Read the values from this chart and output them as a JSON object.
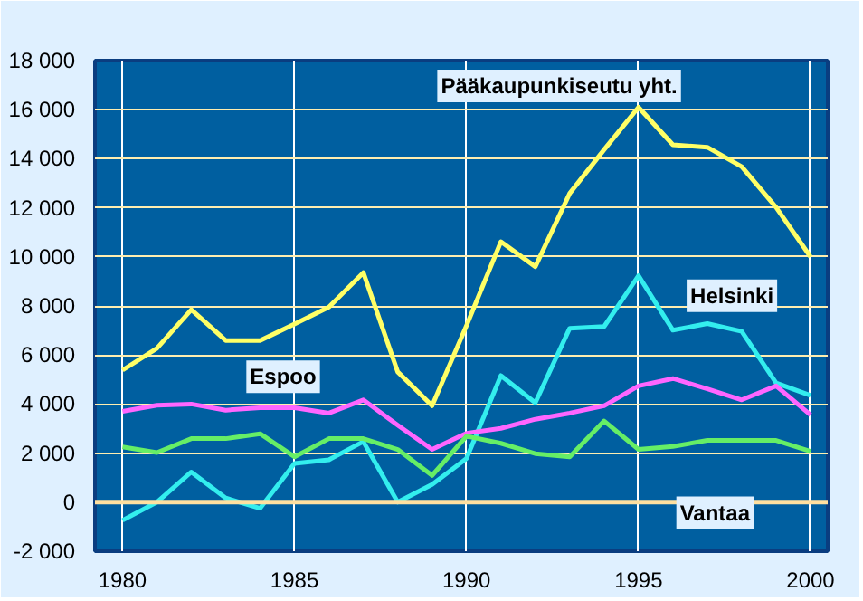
{
  "chart_data": {
    "type": "line",
    "x": [
      1980,
      1981,
      1982,
      1983,
      1984,
      1985,
      1986,
      1987,
      1988,
      1989,
      1990,
      1991,
      1992,
      1993,
      1994,
      1995,
      1996,
      1997,
      1998,
      1999,
      2000
    ],
    "series": [
      {
        "name": "Pääkaupunkiseutu yht.",
        "color": "#ffff66",
        "values": [
          5380,
          6270,
          7850,
          6590,
          6590,
          7260,
          7950,
          9360,
          5310,
          3930,
          7200,
          10620,
          9600,
          12590,
          14370,
          16100,
          14570,
          14470,
          13680,
          12020,
          10000
        ]
      },
      {
        "name": "Helsinki",
        "color": "#33eeee",
        "values": [
          -740,
          0,
          1230,
          170,
          -250,
          1580,
          1730,
          2470,
          0,
          720,
          1780,
          5160,
          4050,
          7090,
          7160,
          9230,
          7010,
          7280,
          6960,
          4860,
          4350
        ]
      },
      {
        "name": "Espoo",
        "color": "#ff66ff",
        "values": [
          3700,
          3950,
          4000,
          3750,
          3850,
          3850,
          3630,
          4170,
          3140,
          2150,
          2810,
          3010,
          3380,
          3630,
          3930,
          4740,
          5040,
          4620,
          4170,
          4740,
          3560
        ]
      },
      {
        "name": "Vantaa",
        "color": "#66ee66",
        "values": [
          2250,
          2020,
          2590,
          2590,
          2790,
          1850,
          2590,
          2590,
          2150,
          1090,
          2690,
          2400,
          1980,
          1850,
          3310,
          2150,
          2270,
          2520,
          2520,
          2520,
          2070
        ]
      }
    ],
    "xlim": [
      1979.2,
      2000.5
    ],
    "ylim": [
      -2000,
      18000
    ],
    "xticks": [
      1980,
      1985,
      1990,
      1995,
      2000
    ],
    "yticks": [
      {
        "value": -2000,
        "label": "-2 000"
      },
      {
        "value": 0,
        "label": "0"
      },
      {
        "value": 2000,
        "label": "2 000"
      },
      {
        "value": 4000,
        "label": "4 000"
      },
      {
        "value": 6000,
        "label": "6 000"
      },
      {
        "value": 8000,
        "label": "8 000"
      },
      {
        "value": 10000,
        "label": "10 000"
      },
      {
        "value": 12000,
        "label": "12 000"
      },
      {
        "value": 14000,
        "label": "14 000"
      },
      {
        "value": 16000,
        "label": "16 000"
      },
      {
        "value": 18000,
        "label": "18 000"
      }
    ],
    "ref_lines": [
      {
        "axis": "y",
        "value": 0,
        "color": "#ffe0a0"
      }
    ],
    "grid": true,
    "legend": false,
    "marker": "none",
    "line_style": "solid"
  }
}
